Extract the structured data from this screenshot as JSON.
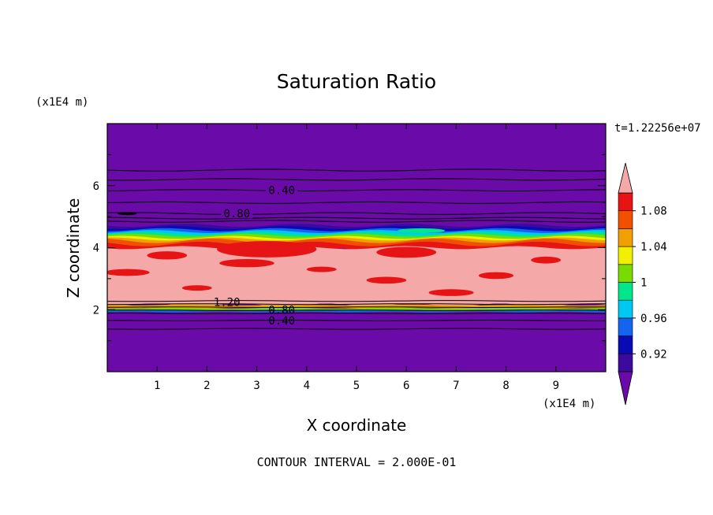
{
  "chart_data": {
    "type": "heatmap",
    "title": "Saturation Ratio",
    "xlabel": "X coordinate",
    "ylabel": "Z coordinate",
    "x_unit": "(x1E4 m)",
    "y_unit": "(x1E4 m)",
    "timestamp": "t=1.22256e+07",
    "footer": "CONTOUR INTERVAL = 2.000E-01",
    "xlim": [
      0,
      10
    ],
    "ylim": [
      0,
      8
    ],
    "x_ticks": [
      "1",
      "2",
      "3",
      "4",
      "5",
      "6",
      "7",
      "8",
      "9"
    ],
    "y_ticks": [
      "2",
      "4",
      "6"
    ],
    "colorbar": {
      "levels": [
        0.9,
        0.92,
        0.94,
        0.96,
        0.98,
        1.0,
        1.02,
        1.04,
        1.06,
        1.08,
        1.1
      ],
      "labels": [
        "0.92",
        "0.96",
        "1",
        "1.04",
        "1.08"
      ],
      "colors": {
        "lt_0.90": "#6a0aa8",
        "0.90-0.92": "#3c0a9c",
        "0.92-0.94": "#0a0ab4",
        "0.94-0.96": "#1464f0",
        "0.96-0.98": "#00c8f0",
        "0.98-1.00": "#00e68c",
        "1.00-1.02": "#78dc00",
        "1.02-1.04": "#f0f000",
        "1.04-1.06": "#f0a000",
        "1.06-1.08": "#f05000",
        "1.08-1.10": "#e61414",
        "gt_1.10": "#f4a8a8"
      }
    },
    "contour_labels": [
      "0.40",
      "0.80",
      "1.20",
      "0.80",
      "0.40"
    ],
    "bands": [
      {
        "z_range": [
          0.0,
          1.9
        ],
        "value_class": "lt_0.90"
      },
      {
        "z_range": [
          1.9,
          2.15
        ],
        "value_class": "mixed_transition"
      },
      {
        "z_range": [
          2.15,
          4.0
        ],
        "value_class": "gt_1.10"
      },
      {
        "z_range": [
          4.0,
          4.3
        ],
        "value_class": "1.06-1.10"
      },
      {
        "z_range": [
          4.3,
          4.65
        ],
        "value_class": "0.92-1.04"
      },
      {
        "z_range": [
          4.65,
          8.0
        ],
        "value_class": "lt_0.90"
      }
    ]
  }
}
